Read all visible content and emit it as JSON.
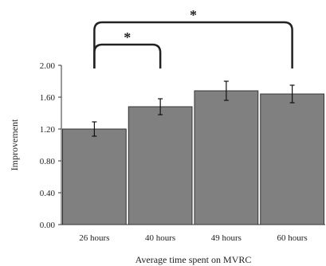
{
  "chart_data": {
    "type": "bar",
    "title": "",
    "xlabel": "Average time spent on MVRC",
    "ylabel": "Improvement",
    "categories": [
      "26 hours",
      "40 hours",
      "49 hours",
      "60 hours"
    ],
    "values": [
      1.2,
      1.48,
      1.68,
      1.64
    ],
    "error": [
      0.09,
      0.1,
      0.12,
      0.11
    ],
    "ylim": [
      0,
      2.0
    ],
    "yticks": [
      "0.00",
      "0.40",
      "0.80",
      "1.20",
      "1.60",
      "2.00"
    ],
    "grid": false,
    "bar_color": "#808080",
    "significance": [
      {
        "from": 0,
        "to": 1,
        "label": "*"
      },
      {
        "from": 0,
        "to": 3,
        "label": "*"
      }
    ]
  }
}
